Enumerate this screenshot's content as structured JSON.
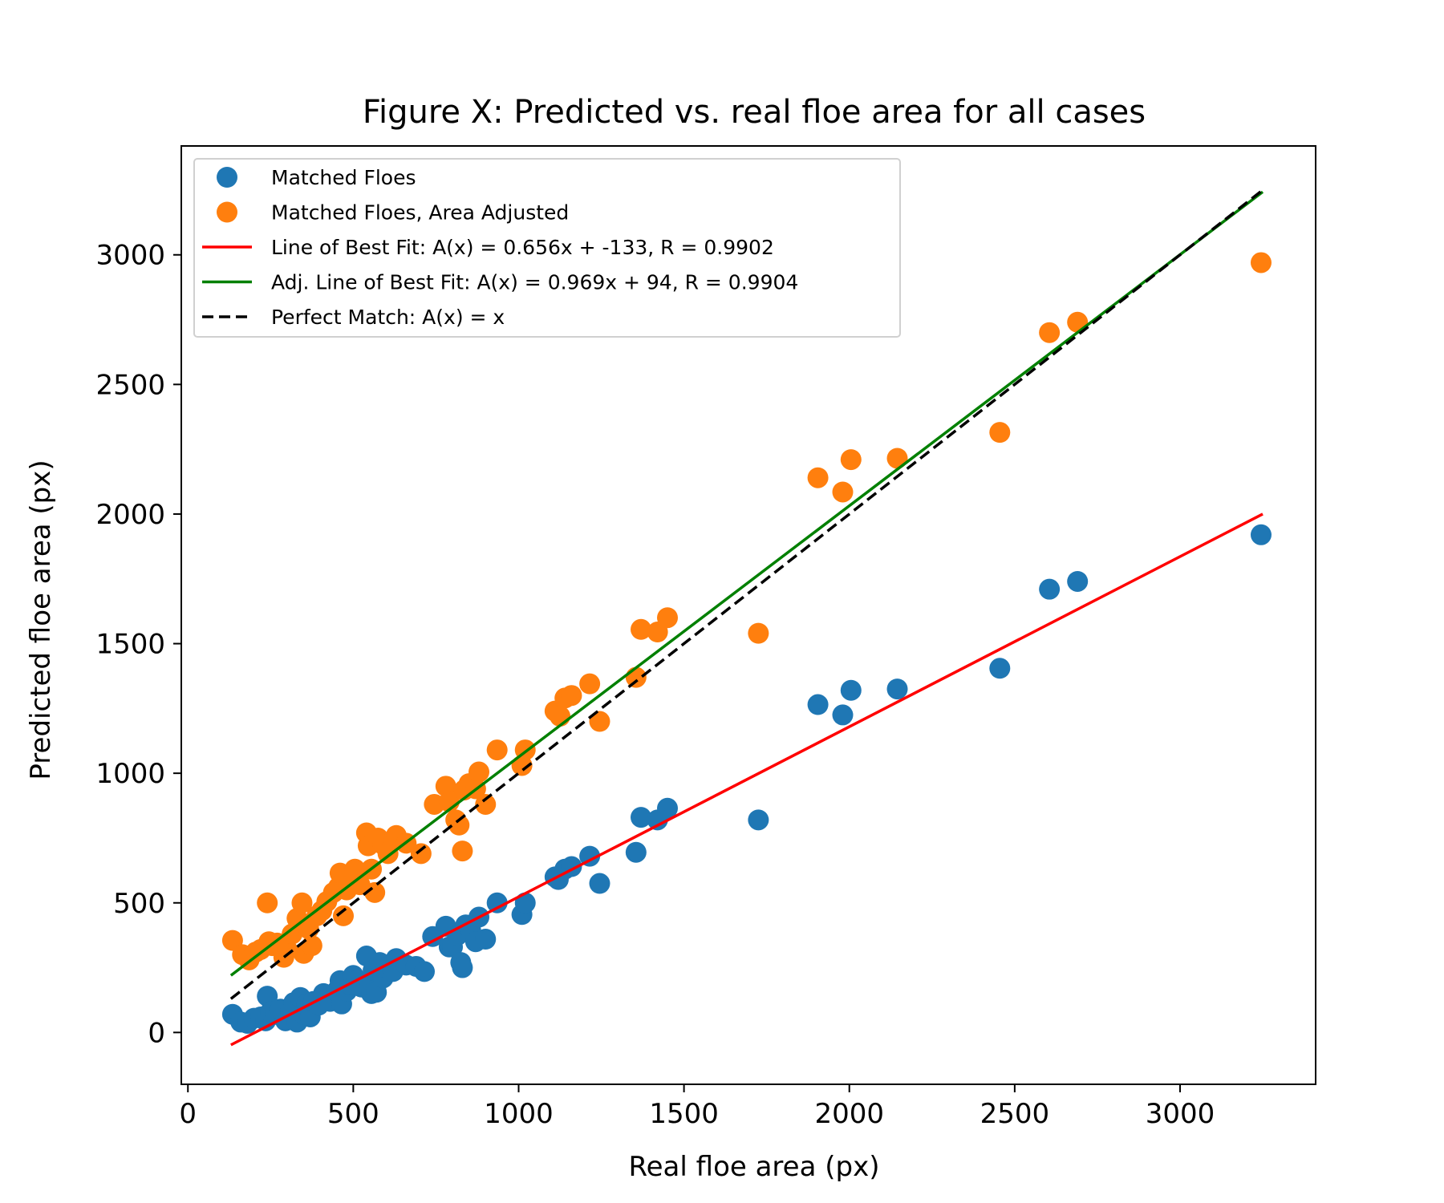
{
  "chart_data": {
    "type": "scatter",
    "title": "Figure X: Predicted vs. real floe area for all cases",
    "xlabel": "Real floe area (px)",
    "ylabel": "Predicted floe area (px)",
    "xlim": [
      -20,
      3410
    ],
    "ylim": [
      -200,
      3420
    ],
    "xticks": [
      0,
      500,
      1000,
      1500,
      2000,
      2500,
      3000
    ],
    "xtick_labels": [
      "0",
      "500",
      "1000",
      "1500",
      "2000",
      "2500",
      "3000"
    ],
    "yticks": [
      0,
      500,
      1000,
      1500,
      2000,
      2500,
      3000
    ],
    "ytick_labels": [
      "0",
      "500",
      "1000",
      "1500",
      "2000",
      "2500",
      "3000"
    ],
    "grid": false,
    "legend_position": "top-left",
    "series": [
      {
        "name": "Matched Floes",
        "kind": "scatter",
        "color": "#1f77b4",
        "points": [
          [
            135,
            70
          ],
          [
            160,
            40
          ],
          [
            180,
            35
          ],
          [
            200,
            55
          ],
          [
            220,
            60
          ],
          [
            235,
            45
          ],
          [
            240,
            140
          ],
          [
            250,
            80
          ],
          [
            265,
            70
          ],
          [
            280,
            90
          ],
          [
            295,
            45
          ],
          [
            310,
            80
          ],
          [
            320,
            115
          ],
          [
            330,
            40
          ],
          [
            340,
            135
          ],
          [
            350,
            70
          ],
          [
            360,
            110
          ],
          [
            370,
            60
          ],
          [
            380,
            120
          ],
          [
            395,
            105
          ],
          [
            410,
            150
          ],
          [
            430,
            120
          ],
          [
            450,
            160
          ],
          [
            460,
            200
          ],
          [
            465,
            110
          ],
          [
            480,
            160
          ],
          [
            490,
            185
          ],
          [
            500,
            220
          ],
          [
            510,
            200
          ],
          [
            525,
            175
          ],
          [
            540,
            295
          ],
          [
            550,
            180
          ],
          [
            555,
            150
          ],
          [
            560,
            240
          ],
          [
            570,
            155
          ],
          [
            580,
            270
          ],
          [
            590,
            210
          ],
          [
            600,
            250
          ],
          [
            620,
            235
          ],
          [
            630,
            285
          ],
          [
            660,
            260
          ],
          [
            690,
            255
          ],
          [
            715,
            235
          ],
          [
            740,
            370
          ],
          [
            780,
            410
          ],
          [
            790,
            330
          ],
          [
            800,
            330
          ],
          [
            815,
            375
          ],
          [
            825,
            270
          ],
          [
            830,
            250
          ],
          [
            840,
            415
          ],
          [
            855,
            395
          ],
          [
            870,
            350
          ],
          [
            880,
            445
          ],
          [
            900,
            360
          ],
          [
            935,
            500
          ],
          [
            1010,
            455
          ],
          [
            1020,
            500
          ],
          [
            1110,
            600
          ],
          [
            1120,
            590
          ],
          [
            1140,
            630
          ],
          [
            1160,
            640
          ],
          [
            1215,
            680
          ],
          [
            1245,
            575
          ],
          [
            1355,
            695
          ],
          [
            1370,
            830
          ],
          [
            1420,
            820
          ],
          [
            1450,
            865
          ],
          [
            1725,
            820
          ],
          [
            1905,
            1265
          ],
          [
            1980,
            1225
          ],
          [
            2005,
            1320
          ],
          [
            2145,
            1325
          ],
          [
            2455,
            1405
          ],
          [
            2605,
            1710
          ],
          [
            2690,
            1740
          ],
          [
            3245,
            1920
          ]
        ]
      },
      {
        "name": "Matched Floes, Area Adjusted",
        "kind": "scatter",
        "color": "#ff7f0e",
        "points": [
          [
            135,
            355
          ],
          [
            165,
            300
          ],
          [
            185,
            280
          ],
          [
            205,
            310
          ],
          [
            220,
            320
          ],
          [
            240,
            500
          ],
          [
            245,
            350
          ],
          [
            255,
            335
          ],
          [
            270,
            345
          ],
          [
            290,
            290
          ],
          [
            300,
            320
          ],
          [
            315,
            380
          ],
          [
            330,
            440
          ],
          [
            345,
            500
          ],
          [
            350,
            305
          ],
          [
            365,
            400
          ],
          [
            375,
            335
          ],
          [
            390,
            450
          ],
          [
            405,
            470
          ],
          [
            420,
            505
          ],
          [
            440,
            540
          ],
          [
            455,
            560
          ],
          [
            460,
            615
          ],
          [
            470,
            450
          ],
          [
            480,
            550
          ],
          [
            495,
            580
          ],
          [
            505,
            630
          ],
          [
            520,
            570
          ],
          [
            540,
            770
          ],
          [
            545,
            720
          ],
          [
            555,
            630
          ],
          [
            565,
            540
          ],
          [
            575,
            750
          ],
          [
            590,
            725
          ],
          [
            605,
            690
          ],
          [
            620,
            740
          ],
          [
            630,
            760
          ],
          [
            660,
            730
          ],
          [
            705,
            690
          ],
          [
            745,
            880
          ],
          [
            780,
            950
          ],
          [
            790,
            890
          ],
          [
            810,
            820
          ],
          [
            820,
            800
          ],
          [
            830,
            700
          ],
          [
            835,
            935
          ],
          [
            850,
            960
          ],
          [
            870,
            940
          ],
          [
            880,
            1005
          ],
          [
            900,
            880
          ],
          [
            935,
            1090
          ],
          [
            1010,
            1030
          ],
          [
            1020,
            1090
          ],
          [
            1110,
            1240
          ],
          [
            1125,
            1220
          ],
          [
            1140,
            1290
          ],
          [
            1160,
            1300
          ],
          [
            1215,
            1345
          ],
          [
            1245,
            1200
          ],
          [
            1355,
            1370
          ],
          [
            1370,
            1555
          ],
          [
            1420,
            1545
          ],
          [
            1450,
            1600
          ],
          [
            1725,
            1540
          ],
          [
            1905,
            2140
          ],
          [
            1980,
            2085
          ],
          [
            2005,
            2210
          ],
          [
            2145,
            2215
          ],
          [
            2455,
            2315
          ],
          [
            2605,
            2700
          ],
          [
            2690,
            2740
          ],
          [
            3245,
            2970
          ]
        ]
      },
      {
        "name": "Line of Best Fit: A(x) = 0.656x + -133, R = 0.9902",
        "kind": "line",
        "color": "#ff0000",
        "style": "solid",
        "x": [
          130,
          3250
        ],
        "y": [
          -48,
          2000
        ]
      },
      {
        "name": "Adj. Line of Best Fit: A(x) = 0.969x + 94, R = 0.9904",
        "kind": "line",
        "color": "#008000",
        "style": "solid",
        "x": [
          130,
          3250
        ],
        "y": [
          220,
          3243
        ]
      },
      {
        "name": "Perfect Match: A(x) = x",
        "kind": "line",
        "color": "#000000",
        "style": "dashed",
        "x": [
          130,
          3250
        ],
        "y": [
          130,
          3250
        ]
      }
    ]
  }
}
